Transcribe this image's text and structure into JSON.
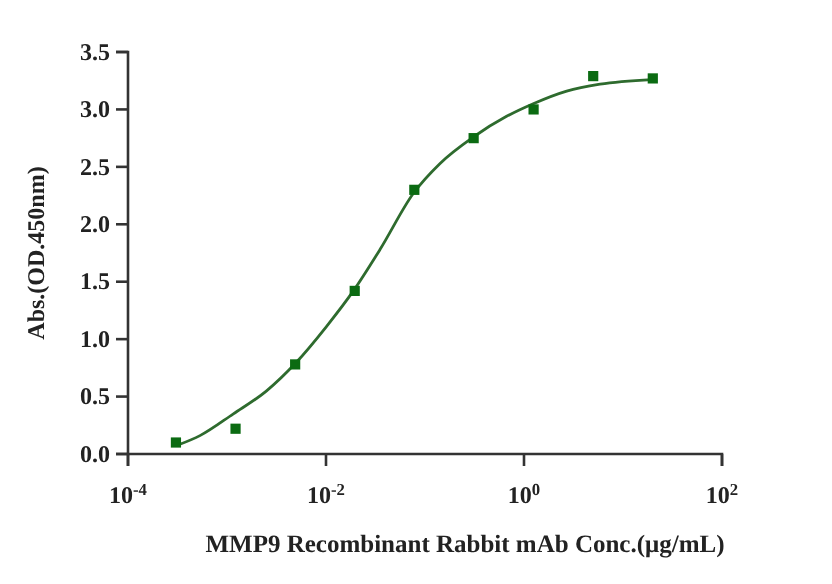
{
  "chart_data": {
    "type": "scatter",
    "xlabel": "MMP9 Recombinant Rabbit mAb Conc.(μg/mL)",
    "ylabel": "Abs.(OD.450nm)",
    "log": "x",
    "grid": false,
    "xlim": [
      0.0001,
      100
    ],
    "xticks": [
      {
        "value": 0.0001,
        "label": "10$^{-4}$"
      },
      {
        "value": 0.01,
        "label": "10$^{-2}$"
      },
      {
        "value": 1,
        "label": "10$^{0}$"
      },
      {
        "value": 100,
        "label": "10$^{2}$"
      }
    ],
    "ylim": [
      0,
      3.5
    ],
    "yticks": [
      {
        "value": 0,
        "label": "0.0"
      },
      {
        "value": 0.5,
        "label": "0.5"
      },
      {
        "value": 1,
        "label": "1.0"
      },
      {
        "value": 1.5,
        "label": "1.5"
      },
      {
        "value": 2,
        "label": "2.0"
      },
      {
        "value": 2.5,
        "label": "2.5"
      },
      {
        "value": 3,
        "label": "3.0"
      },
      {
        "value": 3.5,
        "label": "3.5"
      }
    ],
    "series": [
      {
        "type": "line",
        "marker": "none",
        "color": "#2e6b2e",
        "x": [
          0.000324,
          0.000533,
          0.00116,
          0.00251,
          0.00491,
          0.0101,
          0.0189,
          0.0351,
          0.0764,
          0.142,
          0.308,
          0.667,
          1.24,
          2.7,
          5.86,
          19.6
        ],
        "values": [
          0.08,
          0.16,
          0.35,
          0.55,
          0.79,
          1.11,
          1.42,
          1.78,
          2.27,
          2.53,
          2.76,
          2.94,
          3.05,
          3.16,
          3.22,
          3.26
        ]
      },
      {
        "marker": "square",
        "color": "#0b6b12",
        "x": [
          0.000305,
          0.00122,
          0.00488,
          0.0195,
          0.078,
          0.31,
          1.25,
          5,
          20
        ],
        "values": [
          0.1,
          0.22,
          0.78,
          1.42,
          2.3,
          2.75,
          3.0,
          3.29,
          3.27
        ]
      }
    ]
  }
}
